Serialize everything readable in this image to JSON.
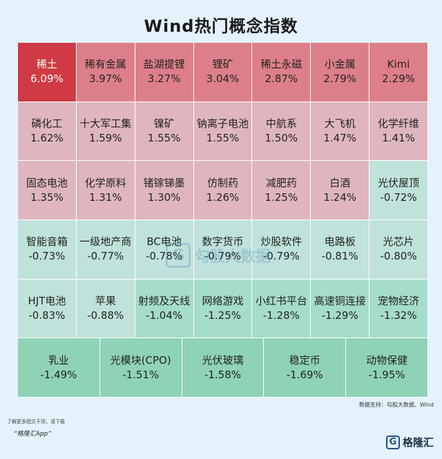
{
  "title": "Wind热门概念指数",
  "chart_data": {
    "type": "heatmap",
    "title": "Wind热门概念指数",
    "unit": "%",
    "rows": [
      [
        {
          "name": "稀土",
          "value": 6.09
        },
        {
          "name": "稀有金属",
          "value": 3.97
        },
        {
          "name": "盐湖提锂",
          "value": 3.27
        },
        {
          "name": "锂矿",
          "value": 3.04
        },
        {
          "name": "稀土永磁",
          "value": 2.87
        },
        {
          "name": "小金属",
          "value": 2.79
        },
        {
          "name": "Kimi",
          "value": 2.29
        }
      ],
      [
        {
          "name": "磷化工",
          "value": 1.62
        },
        {
          "name": "十大军工集",
          "value": 1.59
        },
        {
          "name": "镍矿",
          "value": 1.55
        },
        {
          "name": "钠离子电池",
          "value": 1.55
        },
        {
          "name": "中航系",
          "value": 1.5
        },
        {
          "name": "大飞机",
          "value": 1.47
        },
        {
          "name": "化学纤维",
          "value": 1.41
        }
      ],
      [
        {
          "name": "固态电池",
          "value": 1.35
        },
        {
          "name": "化学原料",
          "value": 1.31
        },
        {
          "name": "锗镓锑墨",
          "value": 1.3
        },
        {
          "name": "仿制药",
          "value": 1.26
        },
        {
          "name": "减肥药",
          "value": 1.25
        },
        {
          "name": "白酒",
          "value": 1.24
        },
        {
          "name": "光伏屋顶",
          "value": -0.72
        }
      ],
      [
        {
          "name": "智能音箱",
          "value": -0.73
        },
        {
          "name": "一级地产商",
          "value": -0.77
        },
        {
          "name": "BC电池",
          "value": -0.78
        },
        {
          "name": "数字货币",
          "value": -0.79
        },
        {
          "name": "炒股软件",
          "value": -0.79
        },
        {
          "name": "电路板",
          "value": -0.81
        },
        {
          "name": "光芯片",
          "value": -0.8
        }
      ],
      [
        {
          "name": "HJT电池",
          "value": -0.83
        },
        {
          "name": "苹果",
          "value": -0.88
        },
        {
          "name": "射频及天线",
          "value": -1.04
        },
        {
          "name": "网络游戏",
          "value": -1.25
        },
        {
          "name": "小红书平台",
          "value": -1.28
        },
        {
          "name": "高速铜连接",
          "value": -1.29
        },
        {
          "name": "宠物经济",
          "value": -1.32
        }
      ],
      [
        {
          "name": "乳业",
          "value": -1.49
        },
        {
          "name": "光模块(CPO)",
          "value": -1.51
        },
        {
          "name": "光伏玻璃",
          "value": -1.58
        },
        {
          "name": "稳定币",
          "value": -1.69
        },
        {
          "name": "动物保健",
          "value": -1.95
        }
      ]
    ],
    "colors": {
      "top": "#cf3a44",
      "strong_up": "#dd7f8a",
      "up": "#dfb6bf",
      "down_light": "#bfe2da",
      "down_mid": "#a5dccb",
      "down_strong": "#8fd3b7"
    }
  },
  "watermark": "勾股大数据",
  "source": "数据支持：勾股大数据、Wind",
  "footer": {
    "note_line1": "了解更多图文干货，请下载",
    "note_line2": "“格隆汇App”",
    "brand": "格隆汇",
    "brand_mark": "G"
  }
}
